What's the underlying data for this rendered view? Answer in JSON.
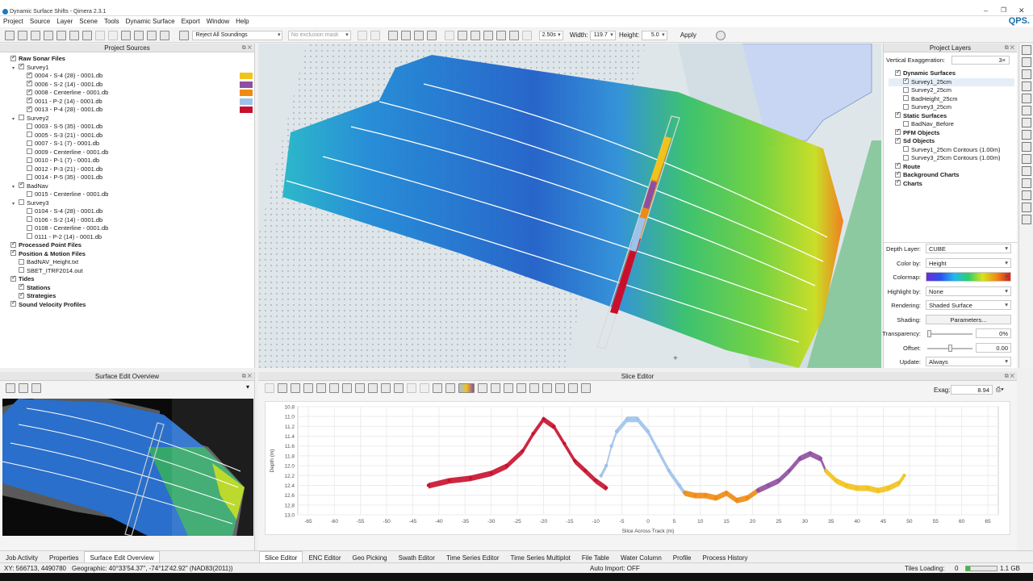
{
  "window": {
    "title": "Dynamic Surface Shifts - Qimera 2.3.1",
    "brand": "QPS."
  },
  "menu": [
    "Project",
    "Source",
    "Layer",
    "Scene",
    "Tools",
    "Dynamic Surface",
    "Export",
    "Window",
    "Help"
  ],
  "toolbar": {
    "filter_combo": "Reject All Soundings",
    "mask_combo": "No exclusion mask",
    "speed": "2.50s",
    "width_label": "Width:",
    "width_value": "119.7",
    "height_label": "Height:",
    "height_value": "5.0",
    "apply_label": "Apply"
  },
  "project_sources": {
    "title": "Project Sources",
    "nodes": [
      {
        "label": "Raw Sonar Files",
        "level": 0,
        "checked": true,
        "bold": true
      },
      {
        "label": "Survey1",
        "level": 1,
        "checked": true,
        "expanded": true
      },
      {
        "label": "0004 - S-4 (28) - 0001.db",
        "level": 2,
        "checked": true,
        "color": "#f2c21c"
      },
      {
        "label": "0006 - S-2 (14) - 0001.db",
        "level": 2,
        "checked": true,
        "color": "#8f4fa0"
      },
      {
        "label": "0008 - Centerline - 0001.db",
        "level": 2,
        "checked": true,
        "color": "#ef8a12"
      },
      {
        "label": "0011 - P-2 (14) - 0001.db",
        "level": 2,
        "checked": true,
        "color": "#9ec2ea"
      },
      {
        "label": "0013 - P-4 (28) - 0001.db",
        "level": 2,
        "checked": true,
        "color": "#c8102e"
      },
      {
        "label": "Survey2",
        "level": 1,
        "checked": false,
        "expanded": true
      },
      {
        "label": "0003 - S-5 (35) - 0001.db",
        "level": 2,
        "checked": false
      },
      {
        "label": "0005 - S-3 (21) - 0001.db",
        "level": 2,
        "checked": false
      },
      {
        "label": "0007 - S-1 (7) - 0001.db",
        "level": 2,
        "checked": false
      },
      {
        "label": "0009 - Centerline - 0001.db",
        "level": 2,
        "checked": false
      },
      {
        "label": "0010 - P-1 (7) - 0001.db",
        "level": 2,
        "checked": false
      },
      {
        "label": "0012 - P-3 (21) - 0001.db",
        "level": 2,
        "checked": false
      },
      {
        "label": "0014 - P-5 (35) - 0001.db",
        "level": 2,
        "checked": false
      },
      {
        "label": "BadNav",
        "level": 1,
        "checked": true,
        "expanded": true
      },
      {
        "label": "0015 - Centerline - 0001.db",
        "level": 2,
        "checked": false
      },
      {
        "label": "Survey3",
        "level": 1,
        "checked": false,
        "expanded": true
      },
      {
        "label": "0104 - S-4 (28) - 0001.db",
        "level": 2,
        "checked": false
      },
      {
        "label": "0106 - S-2 (14) - 0001.db",
        "level": 2,
        "checked": false
      },
      {
        "label": "0108 - Centerline - 0001.db",
        "level": 2,
        "checked": false
      },
      {
        "label": "0111 - P-2 (14) - 0001.db",
        "level": 2,
        "checked": false
      },
      {
        "label": "Processed Point Files",
        "level": 0,
        "checked": true,
        "bold": true
      },
      {
        "label": "Position & Motion Files",
        "level": 0,
        "checked": true,
        "bold": true
      },
      {
        "label": "BadNAV_Height.txt",
        "level": 1,
        "checked": false
      },
      {
        "label": "SBET_ITRF2014.out",
        "level": 1,
        "checked": false
      },
      {
        "label": "Tides",
        "level": 0,
        "checked": true,
        "bold": true
      },
      {
        "label": "Stations",
        "level": 1,
        "checked": true,
        "bold": true
      },
      {
        "label": "Strategies",
        "level": 1,
        "checked": true,
        "bold": true
      },
      {
        "label": "Sound Velocity Profiles",
        "level": 0,
        "checked": true,
        "bold": true
      }
    ]
  },
  "project_layers": {
    "title": "Project Layers",
    "vertical_exaggeration_label": "Vertical Exaggeration:",
    "vertical_exaggeration_value": "3×",
    "nodes": [
      {
        "label": "Dynamic Surfaces",
        "level": 0,
        "checked": true,
        "bold": true
      },
      {
        "label": "Survey1_25cm",
        "level": 1,
        "checked": true,
        "selected": true
      },
      {
        "label": "Survey2_25cm",
        "level": 1,
        "checked": false
      },
      {
        "label": "BadHeight_25cm",
        "level": 1,
        "checked": false
      },
      {
        "label": "Survey3_25cm",
        "level": 1,
        "checked": false
      },
      {
        "label": "Static Surfaces",
        "level": 0,
        "checked": true,
        "bold": true
      },
      {
        "label": "BadNav_Before",
        "level": 1,
        "checked": false
      },
      {
        "label": "PFM Objects",
        "level": 0,
        "checked": true,
        "bold": true
      },
      {
        "label": "Sd Objects",
        "level": 0,
        "checked": true,
        "bold": true
      },
      {
        "label": "Survey1_25cm Contours (1.00m)",
        "level": 1,
        "checked": false
      },
      {
        "label": "Survey3_25cm Contours (1.00m)",
        "level": 1,
        "checked": false
      },
      {
        "label": "Route",
        "level": 0,
        "checked": true,
        "bold": true
      },
      {
        "label": "Background Charts",
        "level": 0,
        "checked": true,
        "bold": true
      },
      {
        "label": "Charts",
        "level": 0,
        "checked": true,
        "bold": true
      }
    ],
    "properties": {
      "depth_layer_label": "Depth Layer:",
      "depth_layer": "CUBE",
      "color_by_label": "Color by:",
      "color_by": "Height",
      "colormap_label": "Colormap:",
      "highlight_by_label": "Highlight by:",
      "highlight_by": "None",
      "rendering_label": "Rendering:",
      "rendering": "Shaded Surface",
      "shading_label": "Shading:",
      "shading_button": "Parameters...",
      "transparency_label": "Transparency:",
      "transparency": "0%",
      "offset_label": "Offset:",
      "offset": "0.00",
      "update_label": "Update:",
      "update": "Always"
    }
  },
  "surface_edit_overview": {
    "title": "Surface Edit Overview"
  },
  "slice_editor": {
    "title": "Slice Editor",
    "exag_label": "Exag:",
    "exag_value": "8.94"
  },
  "chart_data": {
    "type": "scatter",
    "xlabel": "Slice Across Track (m)",
    "ylabel": "Depth (m)",
    "xlim": [
      -67,
      67
    ],
    "ylim": [
      10.8,
      13.0
    ],
    "x_ticks": [
      -65,
      -60,
      -55,
      -50,
      -45,
      -40,
      -35,
      -30,
      -25,
      -20,
      -15,
      -10,
      -5,
      0,
      5,
      10,
      15,
      20,
      25,
      30,
      35,
      40,
      45,
      50,
      55,
      60,
      65
    ],
    "y_ticks": [
      10.8,
      11.0,
      11.2,
      11.4,
      11.6,
      11.8,
      12.0,
      12.2,
      12.4,
      12.6,
      12.8,
      13.0
    ],
    "series": [
      {
        "color": "#c8102e",
        "x": [
          -42,
          -38,
          -34,
          -30,
          -27,
          -24,
          -22,
          -20,
          -18,
          -16,
          -14,
          -12,
          -10,
          -8
        ],
        "y": [
          12.4,
          12.3,
          12.25,
          12.15,
          12.0,
          11.7,
          11.35,
          11.05,
          11.2,
          11.55,
          11.9,
          12.1,
          12.3,
          12.45
        ]
      },
      {
        "color": "#9ec2ea",
        "x": [
          -9,
          -8,
          -7,
          -6,
          -4,
          -2,
          0,
          2,
          4,
          6,
          7
        ],
        "y": [
          12.2,
          12.0,
          11.6,
          11.3,
          11.05,
          11.05,
          11.3,
          11.7,
          12.1,
          12.4,
          12.55
        ]
      },
      {
        "color": "#ef8a12",
        "x": [
          7,
          9,
          11,
          13,
          15,
          17,
          19,
          21
        ],
        "y": [
          12.55,
          12.6,
          12.6,
          12.65,
          12.55,
          12.7,
          12.65,
          12.5
        ]
      },
      {
        "color": "#8f4fa0",
        "x": [
          21,
          23,
          25,
          27,
          29,
          31,
          33,
          34
        ],
        "y": [
          12.5,
          12.4,
          12.3,
          12.1,
          11.85,
          11.75,
          11.85,
          12.1
        ]
      },
      {
        "color": "#f2c21c",
        "x": [
          34,
          36,
          38,
          40,
          42,
          44,
          46,
          48,
          49
        ],
        "y": [
          12.1,
          12.3,
          12.4,
          12.45,
          12.45,
          12.5,
          12.45,
          12.35,
          12.2
        ]
      }
    ]
  },
  "left_tabs": [
    "Job Activity",
    "Properties",
    "Surface Edit Overview"
  ],
  "center_tabs": [
    "Slice Editor",
    "ENC Editor",
    "Geo Picking",
    "Swath Editor",
    "Time Series Editor",
    "Time Series Multiplot",
    "File Table",
    "Water Column",
    "Profile",
    "Process History"
  ],
  "status": {
    "coords": "XY: 566713, 4490780",
    "geographic": "Geographic: 40°33'54.37\", -74°12'42.92\" (NAD83(2011))",
    "auto_import": "Auto Import: OFF",
    "tiles_label": "Tiles Loading:",
    "tiles_value": "0",
    "memory": "1.1 GB"
  }
}
